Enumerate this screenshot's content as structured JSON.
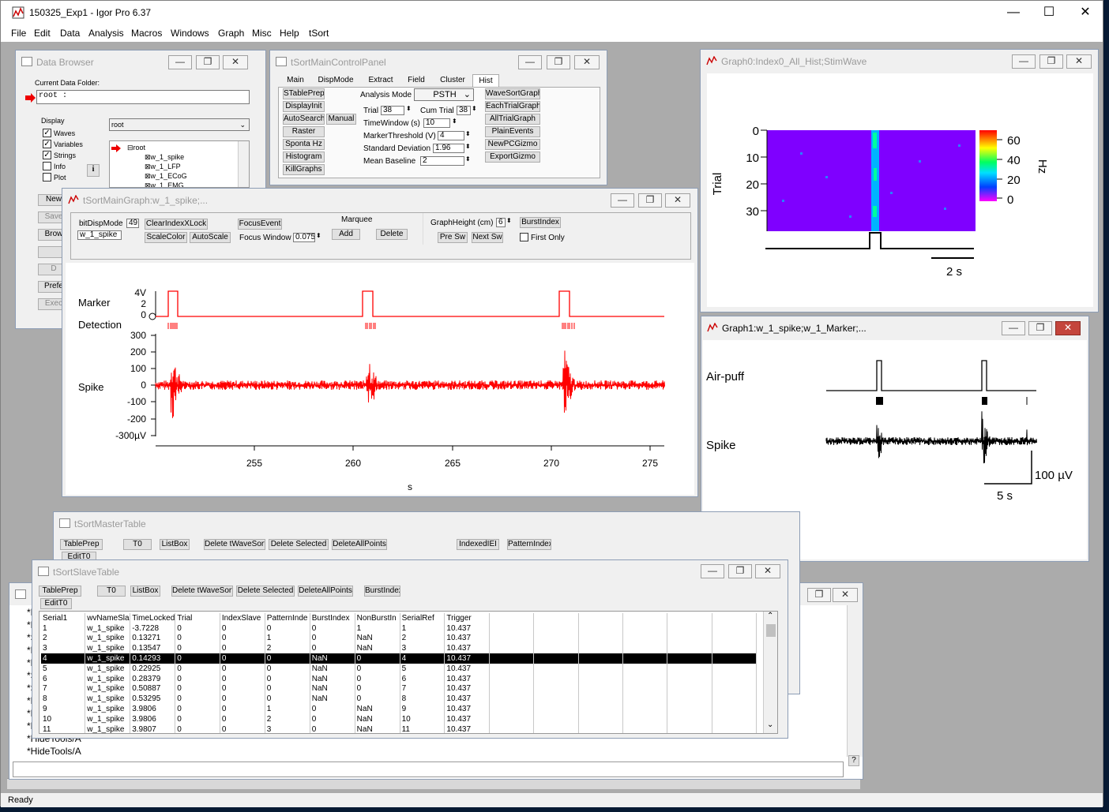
{
  "app": {
    "title": "150325_Exp1 - Igor Pro 6.37",
    "minimize": "—",
    "maximize": "☐",
    "close": "✕",
    "menu": [
      "File",
      "Edit",
      "Data",
      "Analysis",
      "Macros",
      "Windows",
      "Graph",
      "Misc",
      "Help",
      "tSort"
    ],
    "status": "Ready"
  },
  "data_browser": {
    "title": "Data Browser",
    "current_folder_label": "Current Data Folder:",
    "current_folder": "root :",
    "display_label": "Display",
    "checks": [
      {
        "label": "Waves",
        "checked": true
      },
      {
        "label": "Variables",
        "checked": true
      },
      {
        "label": "Strings",
        "checked": true
      },
      {
        "label": "Info",
        "checked": false
      },
      {
        "label": "Plot",
        "checked": false
      }
    ],
    "folder_select": "root",
    "info_btn": "i",
    "tree": [
      "root",
      "w_1_spike",
      "w_1_LFP",
      "w_1_ECoG",
      "w_1_EMG"
    ],
    "side_buttons": [
      "New",
      "Save",
      "Brow",
      "",
      "D",
      "Prefe",
      "Exec"
    ]
  },
  "control_panel": {
    "title": "tSortMainControlPanel",
    "tabs": [
      "Main",
      "DispMode",
      "Extract",
      "Field",
      "Cluster",
      "Hist"
    ],
    "left_buttons": [
      "STablePrep",
      "DisplayInit",
      "AutoSearch",
      "Manual",
      "Raster",
      "Sponta Hz",
      "Histogram",
      "KillGraphs"
    ],
    "analysis_mode_label": "Analysis Mode",
    "analysis_mode": "PSTH",
    "fields": [
      {
        "label": "Trial",
        "value": "38"
      },
      {
        "label": "Cum Trial",
        "value": "38"
      },
      {
        "label": "TimeWindow (s)",
        "value": "10"
      },
      {
        "label": "MarkerThreshold (V)",
        "value": "4"
      },
      {
        "label": "Standard Deviation",
        "value": "1.96"
      },
      {
        "label": "Mean Baseline",
        "value": "2"
      }
    ],
    "right_buttons": [
      "WaveSortGraph",
      "EachTrialGraph",
      "AllTrialGraph",
      "PlainEvents",
      "NewPCGizmo",
      "ExportGizmo"
    ]
  },
  "main_graph": {
    "title": "tSortMainGraph:w_1_spike;...",
    "bitdisp_label": "bitDispMode",
    "bitdisp_value": "49",
    "wave_name": "w_1_spike",
    "buttons_row1": [
      "ClearIndexXLock",
      "FocusEvent"
    ],
    "buttons_row2": [
      "ScaleColor",
      "AutoScale"
    ],
    "focus_window_label": "Focus Window",
    "focus_window_value": "0.075",
    "marquee_label": "Marquee",
    "marquee_add": "Add",
    "marquee_delete": "Delete",
    "graph_height_label": "GraphHeight (cm)",
    "graph_height_value": "6",
    "burst_btn": "BurstIndex",
    "pre_sw": "Pre Sw",
    "next_sw": "Next Sw",
    "first_only": "First Only",
    "labels": {
      "marker": "Marker",
      "detection": "Detection",
      "spike": "Spike",
      "xunit": "s"
    },
    "marker_ticks": [
      "4V",
      "2",
      "0"
    ],
    "spike_ticks": [
      "300",
      "200",
      "100",
      "0",
      "-100",
      "-200",
      "-300µV"
    ],
    "x_ticks": [
      "255",
      "260",
      "265",
      "270",
      "275"
    ]
  },
  "graph0": {
    "title": "Graph0:Index0_All_Hist;StimWave",
    "ylabel": "Trial",
    "y_ticks": [
      "0",
      "10",
      "20",
      "30"
    ],
    "colorbar_ticks": [
      "60",
      "40",
      "20",
      "0"
    ],
    "colorbar_unit": "Hz",
    "scale_label": "2 s"
  },
  "graph1": {
    "title": "Graph1:w_1_spike;w_1_Marker;...",
    "air_label": "Air-puff",
    "spike_label": "Spike",
    "vscale": "100 µV",
    "hscale": "5 s"
  },
  "master_table": {
    "title": "tSortMasterTable",
    "buttons": [
      "TablePrep",
      "T0",
      "ListBox",
      "Delete tWaveSort",
      "Delete Selected",
      "DeleteAllPoints",
      "IndexedIEI",
      "PatternIndex",
      "EditT0"
    ]
  },
  "slave_table": {
    "title": "tSortSlaveTable",
    "buttons": [
      "TablePrep",
      "T0",
      "ListBox",
      "Delete tWaveSort",
      "Delete Selected",
      "DeleteAllPoints",
      "BurstIndex",
      "EditT0"
    ],
    "columns": [
      "Serial1",
      "wvNameSla",
      "TimeLocked",
      "Trial",
      "IndexSlave",
      "PatternInde",
      "BurstIndex",
      "NonBurstIn",
      "SerialRef",
      "Trigger"
    ],
    "rows": [
      [
        "1",
        "w_1_spike",
        "-3.7228",
        "0",
        "0",
        "0",
        "0",
        "1",
        "1",
        "10.437"
      ],
      [
        "2",
        "w_1_spike",
        "0.13271",
        "0",
        "0",
        "1",
        "0",
        "NaN",
        "2",
        "10.437"
      ],
      [
        "3",
        "w_1_spike",
        "0.13547",
        "0",
        "0",
        "2",
        "0",
        "NaN",
        "3",
        "10.437"
      ],
      [
        "4",
        "w_1_spike",
        "0.14293",
        "0",
        "0",
        "0",
        "NaN",
        "0",
        "4",
        "10.437"
      ],
      [
        "5",
        "w_1_spike",
        "0.22925",
        "0",
        "0",
        "0",
        "NaN",
        "0",
        "5",
        "10.437"
      ],
      [
        "6",
        "w_1_spike",
        "0.28379",
        "0",
        "0",
        "0",
        "NaN",
        "0",
        "6",
        "10.437"
      ],
      [
        "7",
        "w_1_spike",
        "0.50887",
        "0",
        "0",
        "0",
        "NaN",
        "0",
        "7",
        "10.437"
      ],
      [
        "8",
        "w_1_spike",
        "0.53295",
        "0",
        "0",
        "0",
        "NaN",
        "0",
        "8",
        "10.437"
      ],
      [
        "9",
        "w_1_spike",
        "3.9806",
        "0",
        "0",
        "1",
        "0",
        "NaN",
        "9",
        "10.437"
      ],
      [
        "10",
        "w_1_spike",
        "3.9806",
        "0",
        "0",
        "2",
        "0",
        "NaN",
        "10",
        "10.437"
      ],
      [
        "11",
        "w_1_spike",
        "3.9807",
        "0",
        "0",
        "3",
        "0",
        "NaN",
        "11",
        "10.437"
      ]
    ],
    "selected_row": 3
  },
  "command_window": {
    "lines": [
      "*Mo",
      "*Mo",
      "*Se",
      "*Mo",
      "*Mo",
      "*Se",
      "*Sh",
      "*Hi",
      "*Hi",
      "*Hi",
      "*HideTools/A",
      "*HideTools/A"
    ],
    "help_btn": "?"
  },
  "colors": {
    "trace_red": "#ff0000",
    "heat_bg": "#7f00ff",
    "accent_blue": "#0078d7"
  }
}
